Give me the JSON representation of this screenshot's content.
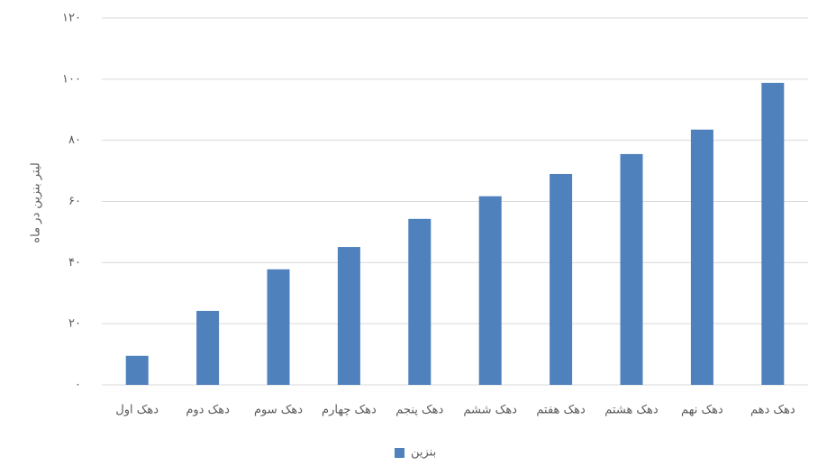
{
  "chart_data": {
    "type": "bar",
    "y_label": "لیتر بنزین در ماه",
    "categories": [
      "دهک اول",
      "دهک دوم",
      "دهک سوم",
      "دهک چهارم",
      "دهک پنجم",
      "دهک ششم",
      "دهک هفتم",
      "دهک هشتم",
      "دهک نهم",
      "دهک دهم"
    ],
    "series": [
      {
        "name": "بنزین",
        "color": "#4f81bd",
        "values": [
          9.5,
          24.2,
          37.8,
          45.1,
          54.3,
          61.7,
          69,
          75.5,
          83.5,
          98.8
        ]
      }
    ],
    "ylim": [
      0,
      120
    ],
    "yticks": [
      {
        "value": 0,
        "label": "۰"
      },
      {
        "value": 20,
        "label": "۲۰"
      },
      {
        "value": 40,
        "label": "۴۰"
      },
      {
        "value": 60,
        "label": "۶۰"
      },
      {
        "value": 80,
        "label": "۸۰"
      },
      {
        "value": 100,
        "label": "۱۰۰"
      },
      {
        "value": 120,
        "label": "۱۲۰"
      }
    ],
    "grid": true,
    "legend": "bottom"
  }
}
